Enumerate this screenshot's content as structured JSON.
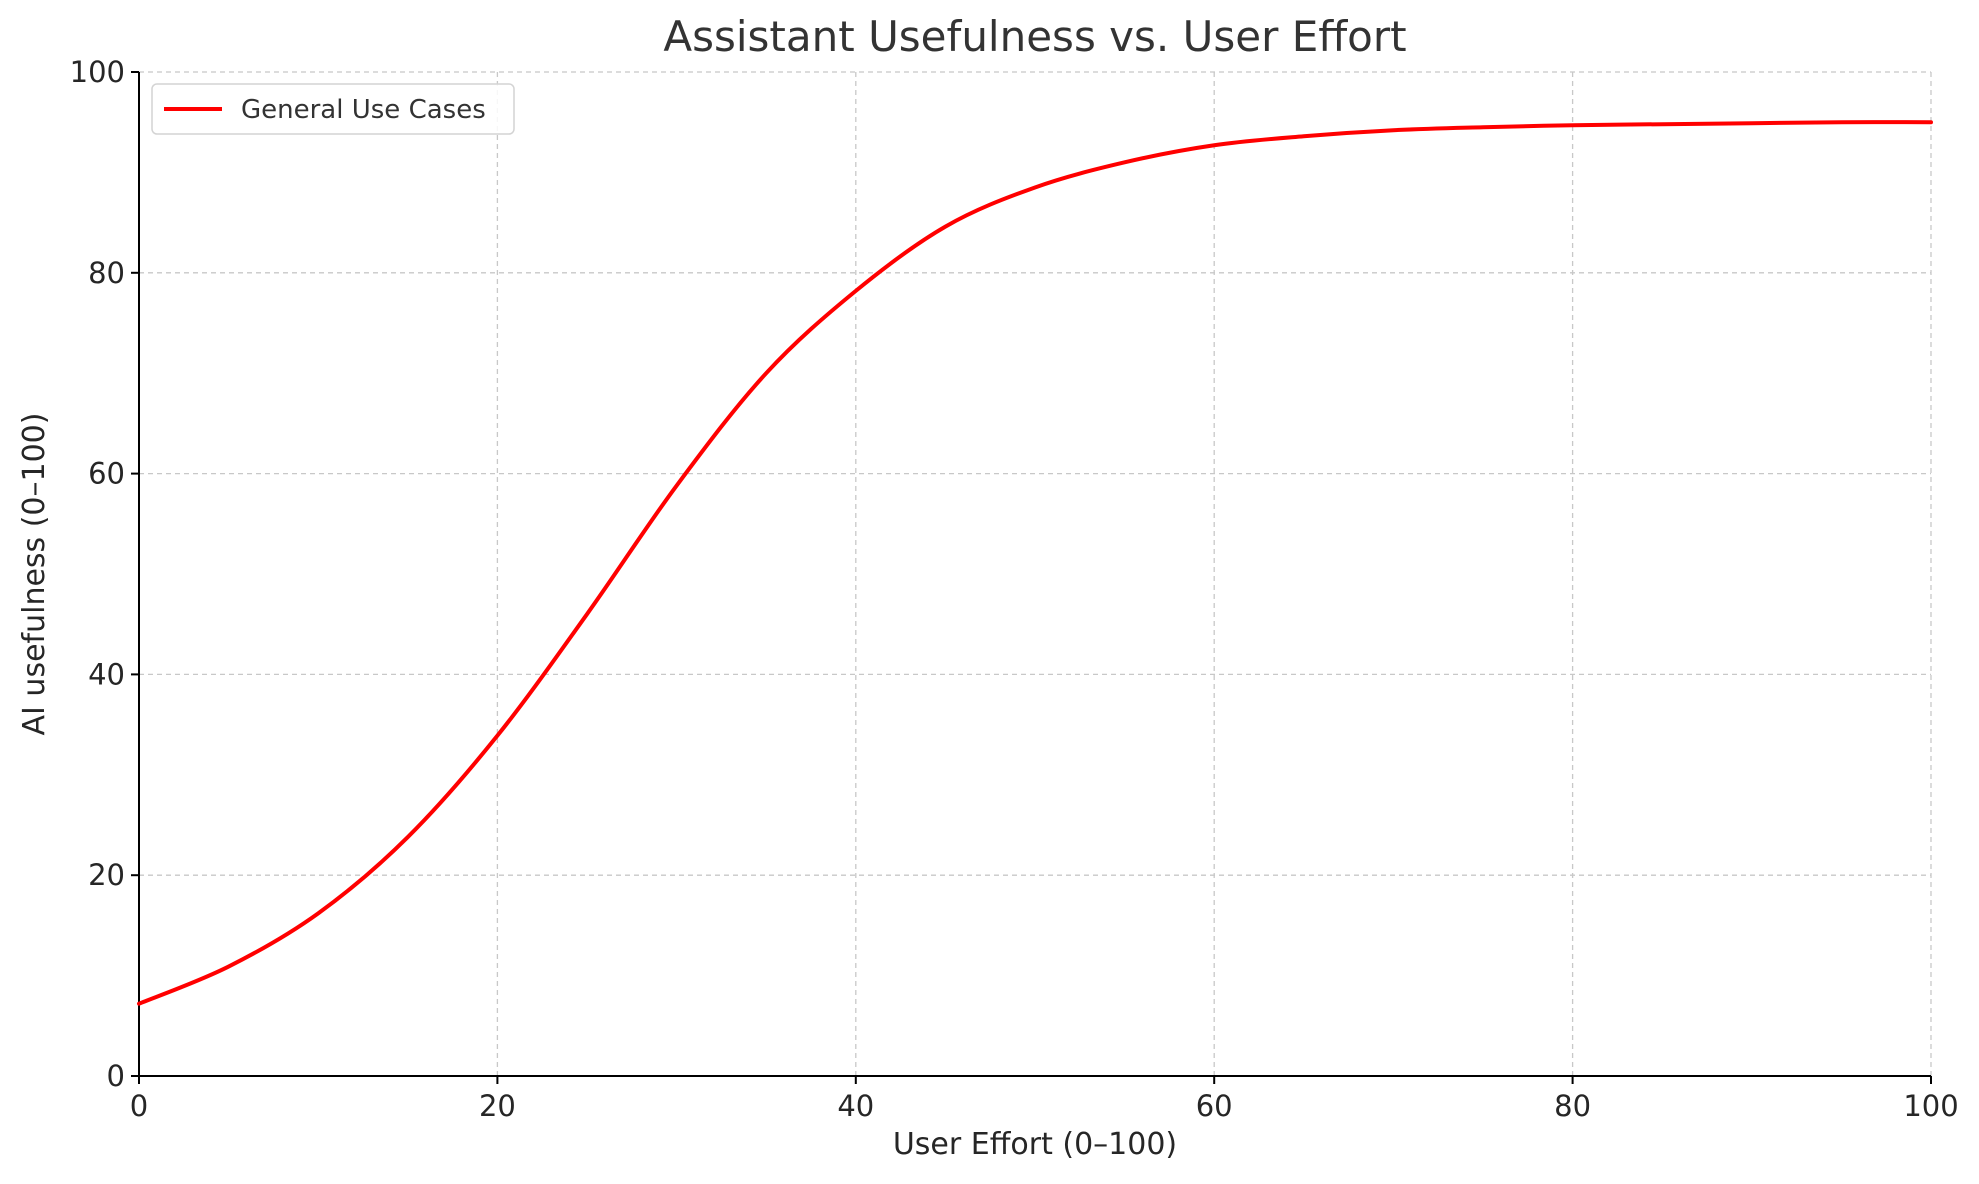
{
  "chart_data": {
    "type": "line",
    "title": "Assistant Usefulness vs. User Effort",
    "xlabel": "User Effort (0–100)",
    "ylabel": "AI usefulness (0–100)",
    "xlim": [
      0,
      100
    ],
    "ylim": [
      0,
      100
    ],
    "x_ticks": [
      0,
      20,
      40,
      60,
      80,
      100
    ],
    "y_ticks": [
      0,
      20,
      40,
      60,
      80,
      100
    ],
    "x_tick_labels": [
      "0",
      "20",
      "40",
      "60",
      "80",
      "100"
    ],
    "y_tick_labels": [
      "0",
      "20",
      "40",
      "60",
      "80",
      "100"
    ],
    "grid": true,
    "legend_position": "top-left",
    "series": [
      {
        "name": "General Use Cases",
        "color": "#ff0000",
        "x": [
          0,
          5,
          10,
          15,
          20,
          25,
          30,
          35,
          40,
          45,
          50,
          55,
          60,
          65,
          70,
          75,
          80,
          85,
          90,
          95,
          100
        ],
        "y": [
          7.2,
          10.9,
          16.2,
          23.8,
          33.9,
          46.0,
          58.8,
          70.0,
          78.2,
          84.6,
          88.5,
          91.0,
          92.7,
          93.6,
          94.2,
          94.5,
          94.7,
          94.8,
          94.9,
          95.0,
          95.0
        ]
      }
    ]
  }
}
